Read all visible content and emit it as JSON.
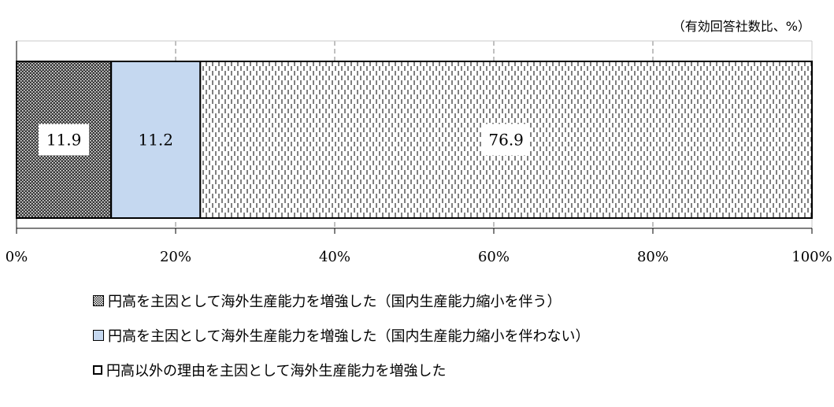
{
  "unit_note": "（有効回答社数比、%）",
  "colors": {
    "series1_fill": "#444444",
    "series2_fill": "#c5d8f0",
    "series3_fill": "#ffffff",
    "axis": "#000000",
    "grid": "#808080"
  },
  "chart_data": {
    "type": "bar",
    "orientation": "horizontal",
    "stacked": true,
    "categories": [
      ""
    ],
    "xlim": [
      0,
      100
    ],
    "x_ticks": [
      "0%",
      "20%",
      "40%",
      "60%",
      "80%",
      "100%"
    ],
    "x_tick_values": [
      0,
      20,
      40,
      60,
      80,
      100
    ],
    "grid": "vertical dashed",
    "legend_position": "bottom",
    "series": [
      {
        "name": "円高を主因として海外生産能力を増強した（国内生産能力縮小を伴う）",
        "values": [
          11.9
        ],
        "label": "11.9",
        "pattern": "dots-dark"
      },
      {
        "name": "円高を主因として海外生産能力を増強した（国内生産能力縮小を伴わない）",
        "values": [
          11.2
        ],
        "label": "11.2",
        "pattern": "solid-light-blue"
      },
      {
        "name": "円高以外の理由を主因として海外生産能力を増強した",
        "values": [
          76.9
        ],
        "label": "76.9",
        "pattern": "dashed-vertical"
      }
    ]
  }
}
